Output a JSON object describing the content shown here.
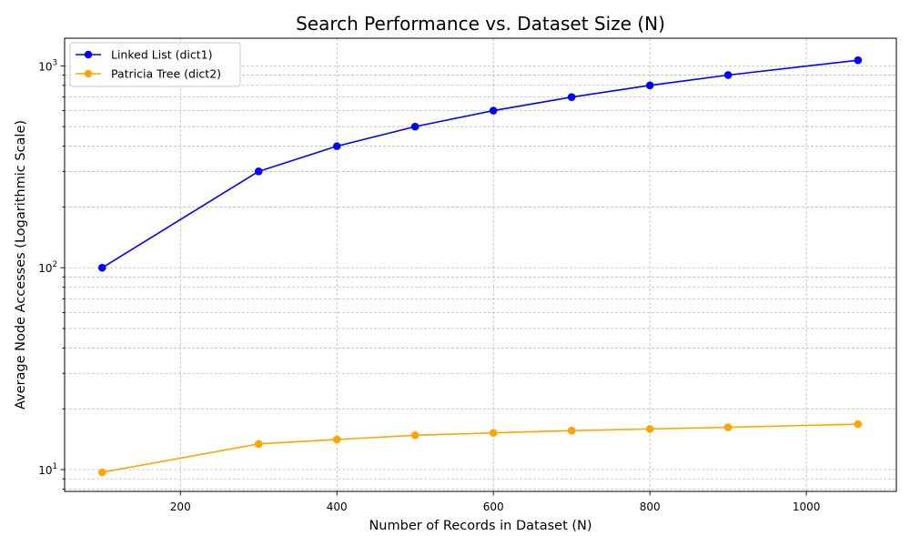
{
  "chart_data": {
    "type": "line",
    "title": "Search Performance vs. Dataset Size (N)",
    "xlabel": "Number of Records in Dataset (N)",
    "ylabel": "Average Node Accesses (Logarithmic Scale)",
    "yscale": "log",
    "xlim": [
      52,
      1115
    ],
    "ylim": [
      7.8,
      1370
    ],
    "xticks": [
      200,
      400,
      600,
      800,
      1000
    ],
    "xtick_labels": [
      "200",
      "400",
      "600",
      "800",
      "1000"
    ],
    "yticks_major": [
      10,
      100,
      1000
    ],
    "ytick_labels": [
      {
        "base": "10",
        "exp": "1"
      },
      {
        "base": "10",
        "exp": "2"
      },
      {
        "base": "10",
        "exp": "3"
      }
    ],
    "grid": true,
    "legend_position": "top-left",
    "series": [
      {
        "name": "Linked List (dict1)",
        "color": "#0000ff",
        "marker": "circle",
        "x": [
          100,
          300,
          400,
          500,
          600,
          700,
          800,
          900,
          1066
        ],
        "y": [
          100,
          300,
          400,
          500,
          600,
          700,
          800,
          900,
          1066
        ]
      },
      {
        "name": "Patricia Tree (dict2)",
        "color": "#ffa500",
        "marker": "circle",
        "x": [
          100,
          300,
          400,
          500,
          600,
          700,
          800,
          900,
          1066
        ],
        "y": [
          9.7,
          13.4,
          14.1,
          14.8,
          15.2,
          15.6,
          15.9,
          16.2,
          16.8
        ]
      }
    ]
  }
}
